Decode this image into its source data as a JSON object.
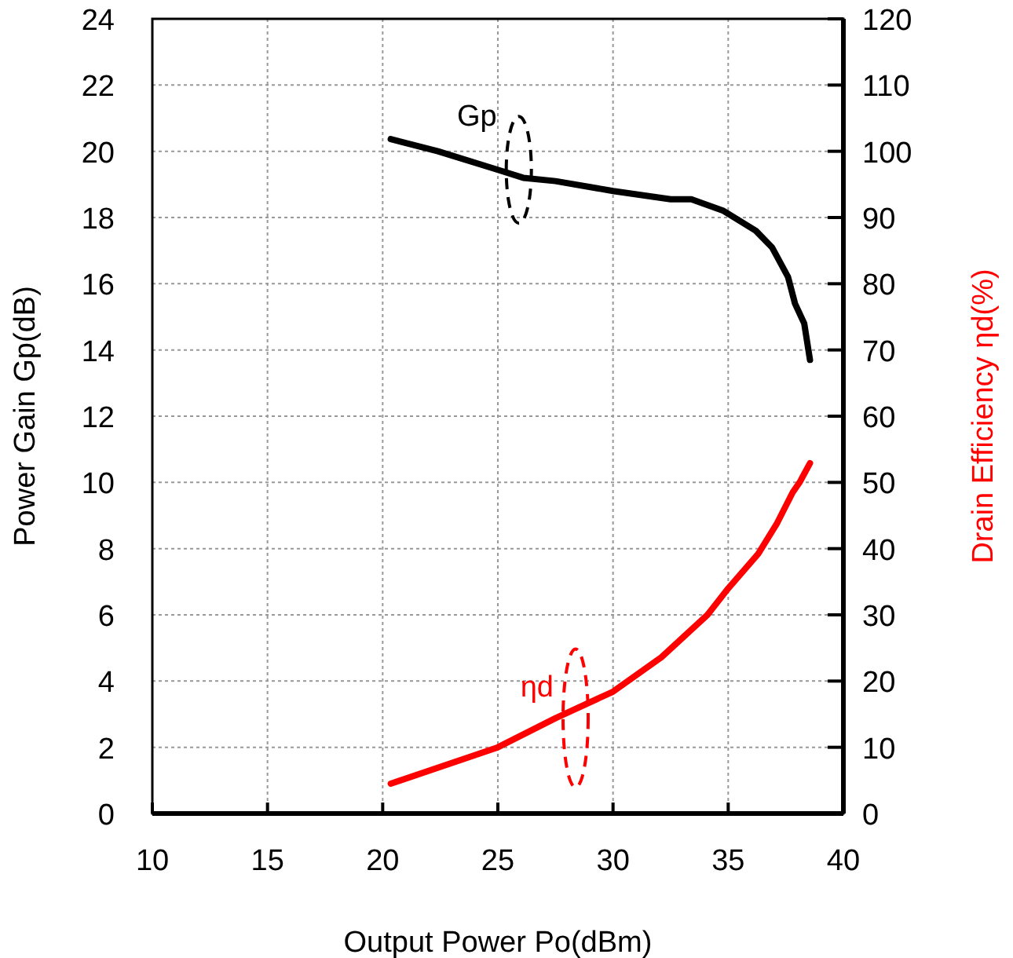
{
  "chart_data": {
    "type": "line",
    "xlabel": "Output Power Po(dBm)",
    "ylabel": "Power Gain Gp(dB)",
    "y2label": "Drain Efficiency ηd(%)",
    "xlim": [
      10,
      40
    ],
    "xticks": [
      10,
      15,
      20,
      25,
      30,
      35,
      40
    ],
    "ylim": [
      0,
      24
    ],
    "yticks": [
      0,
      2,
      4,
      6,
      8,
      10,
      12,
      14,
      16,
      18,
      20,
      22,
      24
    ],
    "y2lim": [
      0,
      120
    ],
    "y2ticks": [
      0,
      10,
      20,
      30,
      40,
      50,
      60,
      70,
      80,
      90,
      100,
      110,
      120
    ],
    "grid": true,
    "marker": "none",
    "line_style": "solid",
    "series": [
      {
        "name": "Gp",
        "color": "#000000",
        "x": [
          20.35,
          22.4,
          25,
          26.1,
          27.5,
          30,
          32.5,
          33.4,
          34.8,
          36.2,
          36.9,
          37.6,
          37.9,
          38.3,
          38.55
        ],
        "values": [
          20.37,
          20.0,
          19.44,
          19.2,
          19.1,
          18.8,
          18.55,
          18.55,
          18.2,
          17.6,
          17.1,
          16.2,
          15.4,
          14.8,
          13.7
        ]
      },
      {
        "name": "ηd",
        "color": "#ff0000",
        "axis": "y2",
        "x": [
          20.35,
          25,
          27.5,
          30,
          32.1,
          34.1,
          35,
          36.3,
          37.1,
          37.8,
          38.1,
          38.55
        ],
        "values": [
          4.5,
          10,
          14.4,
          18.4,
          23.6,
          30,
          34,
          39.2,
          43.7,
          48.5,
          50,
          52.9
        ]
      }
    ]
  }
}
